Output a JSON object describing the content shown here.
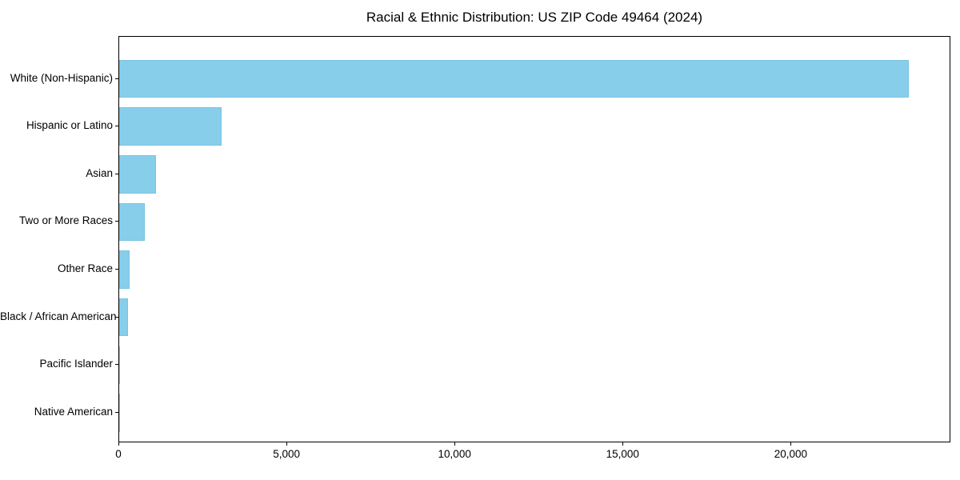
{
  "chart_data": {
    "type": "bar",
    "orientation": "horizontal",
    "title": "Racial & Ethnic Distribution: US ZIP Code 49464 (2024)",
    "categories": [
      "White (Non-Hispanic)",
      "Hispanic or Latino",
      "Asian",
      "Two or More Races",
      "Other Race",
      "Black / African American",
      "Pacific Islander",
      "Native American"
    ],
    "values": [
      23500,
      3050,
      1100,
      750,
      300,
      250,
      10,
      5
    ],
    "xlabel": "",
    "ylabel": "",
    "xlim": [
      0,
      24750
    ],
    "x_ticks": [
      {
        "value": 0,
        "label": "0"
      },
      {
        "value": 5000,
        "label": "5,000"
      },
      {
        "value": 10000,
        "label": "10,000"
      },
      {
        "value": 15000,
        "label": "15,000"
      },
      {
        "value": 20000,
        "label": "20,000"
      }
    ],
    "grid": false,
    "legend": "none",
    "colors": {
      "bar": "#87CEEB",
      "bar_edge": "#79c3e2",
      "axis": "#000000",
      "text": "#000000",
      "background": "#FFFFFF"
    }
  }
}
